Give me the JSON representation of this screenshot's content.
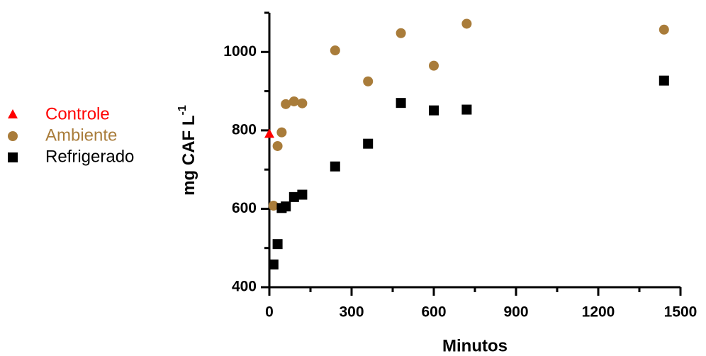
{
  "chart_data": {
    "type": "scatter",
    "xlabel": "Minutos",
    "ylabel": "mg CAF L",
    "ylabel_superscript": "-1",
    "xlim": [
      0,
      1500
    ],
    "xticks": [
      0,
      300,
      600,
      900,
      1200,
      1500
    ],
    "xminorticks": [
      150,
      450,
      750,
      1050,
      1350
    ],
    "ylim": [
      400,
      1100
    ],
    "yticks": [
      400,
      600,
      800,
      1000
    ],
    "yminorticks": [
      500,
      700,
      900,
      1100
    ],
    "grid": false,
    "legend": "left",
    "series": [
      {
        "name": "Controle",
        "color": "#ff0000",
        "marker": "triangle",
        "x": [
          0
        ],
        "values": [
          790
        ]
      },
      {
        "name": "Ambiente",
        "color": "#a97c3a",
        "marker": "circle",
        "x": [
          15,
          30,
          45,
          60,
          90,
          120,
          240,
          360,
          480,
          600,
          720,
          1440
        ],
        "values": [
          608,
          760,
          795,
          867,
          874,
          869,
          1004,
          925,
          1048,
          965,
          1072,
          1057
        ]
      },
      {
        "name": "Refrigerado",
        "color": "#000000",
        "marker": "square",
        "x": [
          15,
          30,
          45,
          60,
          90,
          120,
          240,
          360,
          480,
          600,
          720,
          1440
        ],
        "values": [
          458,
          510,
          602,
          606,
          630,
          636,
          708,
          766,
          870,
          851,
          853,
          927
        ]
      }
    ]
  }
}
